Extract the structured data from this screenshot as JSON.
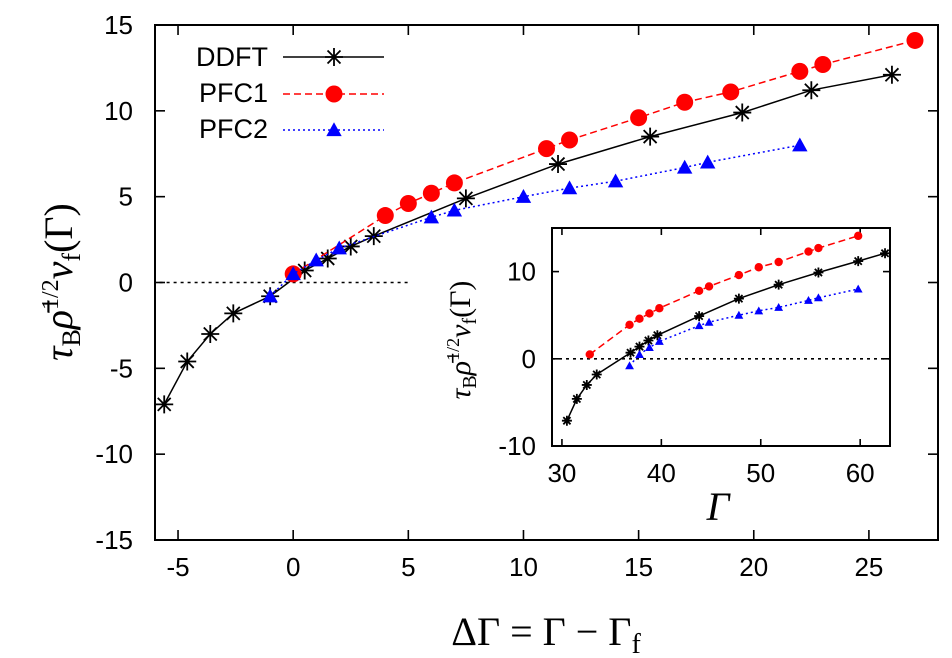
{
  "chart_data": [
    {
      "type": "line",
      "xlabel": "ΔΓ = Γ − Γf",
      "ylabel": "τBρ̄1/2vf(Γ)",
      "xlim": [
        -6,
        28
      ],
      "ylim": [
        -15,
        15
      ],
      "xticks": [
        "-5",
        "0",
        "5",
        "10",
        "15",
        "20",
        "25"
      ],
      "yticks": [
        "-15",
        "-10",
        "-5",
        "0",
        "5",
        "10",
        "15"
      ],
      "grid": false,
      "legend": "top-left",
      "reference_line": {
        "y": 0,
        "x_range": [
          -5.8,
          5
        ],
        "style": "dotted"
      },
      "series": [
        {
          "name": "DDFT",
          "color": "#000000",
          "marker": "asterisk",
          "line": "solid",
          "x": [
            -5.6,
            -4.6,
            -3.6,
            -2.6,
            -1.0,
            0.5,
            1.5,
            2.5,
            3.5,
            7.5,
            11.5,
            15.5,
            19.5,
            22.5,
            26.0
          ],
          "y": [
            -7.1,
            -4.6,
            -3.0,
            -1.8,
            -0.8,
            0.7,
            1.4,
            2.1,
            2.7,
            4.9,
            6.9,
            8.5,
            9.9,
            11.2,
            12.1
          ]
        },
        {
          "name": "PFC1",
          "color": "#ff0000",
          "marker": "circle",
          "line": "dashed",
          "x": [
            0.0,
            4.0,
            5.0,
            6.0,
            7.0,
            11.0,
            12.0,
            15.0,
            17.0,
            19.0,
            22.0,
            23.0,
            27.0
          ],
          "y": [
            0.5,
            3.9,
            4.6,
            5.2,
            5.8,
            7.8,
            8.3,
            9.6,
            10.5,
            11.1,
            12.3,
            12.7,
            14.1
          ]
        },
        {
          "name": "PFC2",
          "color": "#0000ff",
          "marker": "triangle",
          "line": "dotted",
          "x": [
            -1.0,
            0.0,
            1.0,
            2.0,
            6.0,
            7.0,
            10.0,
            12.0,
            14.0,
            17.0,
            18.0,
            22.0
          ],
          "y": [
            -0.8,
            0.5,
            1.3,
            2.0,
            3.8,
            4.2,
            5.0,
            5.5,
            5.9,
            6.7,
            7.0,
            8.0
          ]
        }
      ]
    },
    {
      "type": "line",
      "xlabel": "Γ",
      "ylabel": "τBρ̄1/2vf(Γ)",
      "xlim": [
        29,
        63
      ],
      "ylim": [
        -10,
        15
      ],
      "xticks": [
        "30",
        "40",
        "50",
        "60"
      ],
      "yticks": [
        "-10",
        "0",
        "10"
      ],
      "grid": false,
      "reference_line": {
        "y": 0,
        "x_range": [
          29,
          63
        ],
        "style": "dotted"
      },
      "series": [
        {
          "name": "DDFT",
          "color": "#000000",
          "marker": "asterisk",
          "line": "solid",
          "x": [
            30.5,
            31.5,
            32.5,
            33.5,
            36.9,
            37.8,
            38.7,
            39.6,
            43.8,
            47.8,
            51.8,
            55.8,
            59.8,
            62.5
          ],
          "y": [
            -7.1,
            -4.6,
            -3.0,
            -1.8,
            0.7,
            1.4,
            2.1,
            2.7,
            4.9,
            6.9,
            8.5,
            9.9,
            11.2,
            12.1
          ]
        },
        {
          "name": "PFC1",
          "color": "#ff0000",
          "marker": "circle",
          "line": "dashed",
          "x": [
            32.8,
            36.8,
            37.8,
            38.8,
            39.8,
            43.8,
            44.8,
            47.8,
            49.8,
            51.8,
            54.8,
            55.8,
            59.8
          ],
          "y": [
            0.5,
            3.9,
            4.6,
            5.2,
            5.8,
            7.8,
            8.3,
            9.6,
            10.5,
            11.1,
            12.3,
            12.7,
            14.1
          ]
        },
        {
          "name": "PFC2",
          "color": "#0000ff",
          "marker": "triangle",
          "line": "dotted",
          "x": [
            36.8,
            37.8,
            38.8,
            39.8,
            43.8,
            44.8,
            47.8,
            49.8,
            51.8,
            54.8,
            55.8,
            59.8
          ],
          "y": [
            -0.8,
            0.5,
            1.3,
            2.0,
            3.8,
            4.2,
            5.0,
            5.5,
            5.9,
            6.7,
            7.0,
            8.0
          ]
        }
      ]
    }
  ]
}
